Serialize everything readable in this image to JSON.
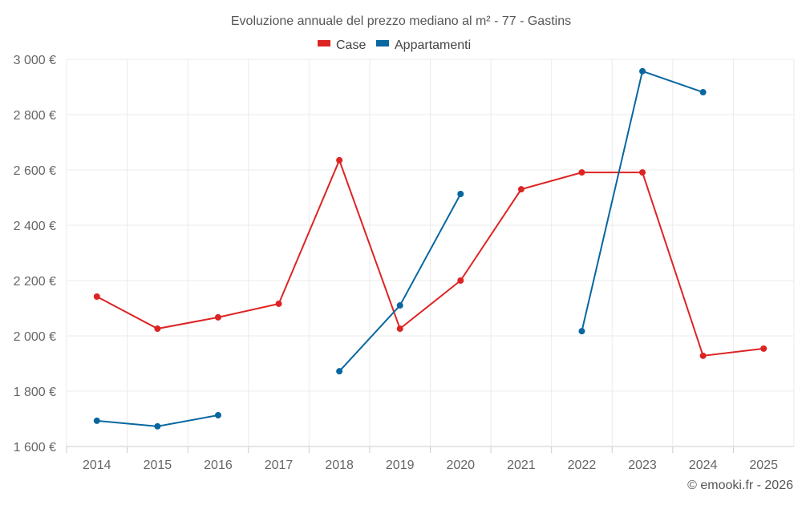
{
  "chart_data": {
    "type": "line",
    "title": "Evoluzione annuale del prezzo mediano al m² - 77 - Gastins",
    "xlabel": "",
    "ylabel": "",
    "categories": [
      "2014",
      "2015",
      "2016",
      "2017",
      "2018",
      "2019",
      "2020",
      "2021",
      "2022",
      "2023",
      "2024",
      "2025"
    ],
    "ylim": [
      1600,
      3000
    ],
    "yticks": [
      1600,
      1800,
      2000,
      2200,
      2400,
      2600,
      2800,
      3000
    ],
    "ytick_labels": [
      "1 600 €",
      "1 800 €",
      "2 000 €",
      "2 200 €",
      "2 400 €",
      "2 600 €",
      "2 800 €",
      "3 000 €"
    ],
    "grid": true,
    "legend_position": "top-center",
    "series": [
      {
        "name": "Case",
        "color": "#dd2424",
        "values": [
          2142,
          2026,
          2067,
          2116,
          2635,
          2026,
          2200,
          2530,
          2591,
          2591,
          1928,
          1954
        ]
      },
      {
        "name": "Appartamenti",
        "color": "#0867a0",
        "values": [
          1693,
          1673,
          1713,
          null,
          1872,
          2110,
          2513,
          null,
          2017,
          2957,
          2881,
          null
        ]
      }
    ]
  },
  "credits": "© emooki.fr - 2026"
}
